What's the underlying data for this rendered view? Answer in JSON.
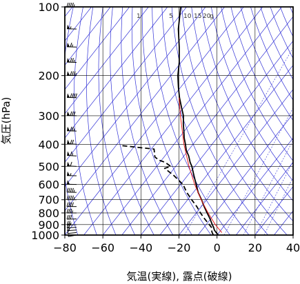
{
  "chart_data": {
    "type": "line",
    "chart_kind": "skew-T log-p sounding diagram",
    "title": "",
    "xlabel": "気温(実線), 露点(破線)",
    "ylabel": "気圧(hPa)",
    "x_range": [
      -80,
      40
    ],
    "y_range_hpa": [
      1000,
      100
    ],
    "y_scale": "log",
    "skew_degrees_per_decade": 94,
    "grid": true,
    "x_ticks": [
      "−80",
      "−60",
      "−40",
      "−20",
      "0",
      "20",
      "40"
    ],
    "x_tick_values": [
      -80,
      -60,
      -40,
      -20,
      0,
      20,
      40
    ],
    "y_ticks": [
      "100",
      "200",
      "300",
      "400",
      "500",
      "600",
      "700",
      "800",
      "900",
      "1000"
    ],
    "y_tick_values": [
      100,
      200,
      300,
      400,
      500,
      600,
      700,
      800,
      900,
      1000
    ],
    "mixing_ratio_labels": [
      "1",
      "5",
      "10",
      "15",
      "20",
      "g"
    ],
    "mixing_ratio_values": [
      1,
      5,
      10,
      15,
      20
    ],
    "series": [
      {
        "role": "temperature",
        "style": "solid",
        "color": "#000000",
        "points": [
          {
            "p": 1000,
            "t": 0.7
          },
          {
            "p": 975,
            "t": -1.5
          },
          {
            "p": 950,
            "t": -3.5
          },
          {
            "p": 925,
            "t": -5.0
          },
          {
            "p": 900,
            "t": -6.8
          },
          {
            "p": 850,
            "t": -10.3
          },
          {
            "p": 800,
            "t": -14.3
          },
          {
            "p": 750,
            "t": -18.5
          },
          {
            "p": 700,
            "t": -22.7
          },
          {
            "p": 650,
            "t": -27.5
          },
          {
            "p": 600,
            "t": -31.8
          },
          {
            "p": 550,
            "t": -36.5
          },
          {
            "p": 500,
            "t": -41.5
          },
          {
            "p": 480,
            "t": -44.1
          },
          {
            "p": 450,
            "t": -47.5
          },
          {
            "p": 425,
            "t": -51.1
          },
          {
            "p": 400,
            "t": -54.0
          },
          {
            "p": 375,
            "t": -57.3
          },
          {
            "p": 350,
            "t": -60.3
          },
          {
            "p": 325,
            "t": -63.6
          },
          {
            "p": 300,
            "t": -66.8
          },
          {
            "p": 275,
            "t": -71.4
          },
          {
            "p": 250,
            "t": -76.3
          },
          {
            "p": 225,
            "t": -81.2
          },
          {
            "p": 200,
            "t": -86.3
          },
          {
            "p": 175,
            "t": -91.0
          },
          {
            "p": 150,
            "t": -97.3
          },
          {
            "p": 125,
            "t": -105.2
          },
          {
            "p": 100,
            "t": -113.1
          }
        ]
      },
      {
        "role": "dewpoint",
        "style": "dashed",
        "color": "#000000",
        "points": [
          {
            "p": 1000,
            "t": -1.9
          },
          {
            "p": 975,
            "t": -3.6
          },
          {
            "p": 950,
            "t": -5.0
          },
          {
            "p": 925,
            "t": -6.1
          },
          {
            "p": 900,
            "t": -8.3
          },
          {
            "p": 850,
            "t": -13.1
          },
          {
            "p": 800,
            "t": -17.8
          },
          {
            "p": 750,
            "t": -22.4
          },
          {
            "p": 700,
            "t": -27.9
          },
          {
            "p": 650,
            "t": -33.5
          },
          {
            "p": 600,
            "t": -38.7
          },
          {
            "p": 550,
            "t": -46.9
          },
          {
            "p": 510,
            "t": -55.0
          },
          {
            "p": 500,
            "t": -52.6
          },
          {
            "p": 480,
            "t": -57.2
          },
          {
            "p": 470,
            "t": -61.2
          },
          {
            "p": 455,
            "t": -64.8
          },
          {
            "p": 420,
            "t": -68.5
          },
          {
            "p": 405,
            "t": -87.5
          }
        ]
      },
      {
        "role": "reference-curve",
        "style": "solid",
        "color": "#e81c1c",
        "points": [
          {
            "p": 975,
            "t": 1.5
          },
          {
            "p": 900,
            "t": -5.2
          },
          {
            "p": 800,
            "t": -13.8
          },
          {
            "p": 700,
            "t": -22.9
          },
          {
            "p": 600,
            "t": -32.6
          },
          {
            "p": 500,
            "t": -43.0
          },
          {
            "p": 400,
            "t": -54.8
          },
          {
            "p": 300,
            "t": -68.4
          },
          {
            "p": 250,
            "t": -76.5
          }
        ]
      }
    ],
    "wind_barbs": [
      {
        "p": 1000,
        "speed_kt": 5,
        "dir_deg": 300
      },
      {
        "p": 975,
        "speed_kt": 10,
        "dir_deg": 290
      },
      {
        "p": 950,
        "speed_kt": 15,
        "dir_deg": 285
      },
      {
        "p": 925,
        "speed_kt": 20,
        "dir_deg": 280
      },
      {
        "p": 900,
        "speed_kt": 25,
        "dir_deg": 280
      },
      {
        "p": 850,
        "speed_kt": 30,
        "dir_deg": 275
      },
      {
        "p": 800,
        "speed_kt": 35,
        "dir_deg": 270
      },
      {
        "p": 750,
        "speed_kt": 40,
        "dir_deg": 270
      },
      {
        "p": 700,
        "speed_kt": 45,
        "dir_deg": 270
      },
      {
        "p": 650,
        "speed_kt": 45,
        "dir_deg": 265
      },
      {
        "p": 600,
        "speed_kt": 50,
        "dir_deg": 265
      },
      {
        "p": 550,
        "speed_kt": 55,
        "dir_deg": 265
      },
      {
        "p": 500,
        "speed_kt": 60,
        "dir_deg": 260
      },
      {
        "p": 450,
        "speed_kt": 65,
        "dir_deg": 260
      },
      {
        "p": 400,
        "speed_kt": 70,
        "dir_deg": 260
      },
      {
        "p": 350,
        "speed_kt": 75,
        "dir_deg": 265
      },
      {
        "p": 300,
        "speed_kt": 80,
        "dir_deg": 265
      },
      {
        "p": 250,
        "speed_kt": 90,
        "dir_deg": 265
      },
      {
        "p": 200,
        "speed_kt": 85,
        "dir_deg": 265
      },
      {
        "p": 175,
        "speed_kt": 75,
        "dir_deg": 265
      },
      {
        "p": 150,
        "speed_kt": 65,
        "dir_deg": 265
      },
      {
        "p": 125,
        "speed_kt": 55,
        "dir_deg": 265
      },
      {
        "p": 100,
        "speed_kt": 45,
        "dir_deg": 270
      }
    ],
    "colors": {
      "dry_adiabat": "#2f2fd6",
      "isotherm": "#2f2fd6",
      "grid": "#000000",
      "reference_curve": "#e81c1c"
    }
  }
}
